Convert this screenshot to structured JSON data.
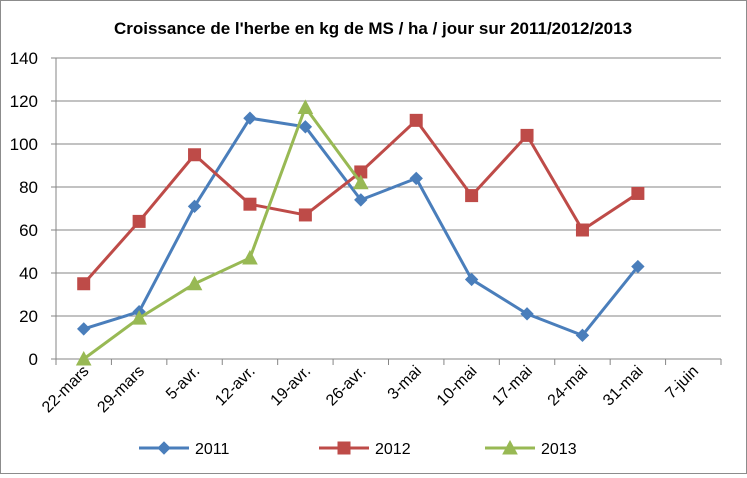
{
  "chart_data": {
    "type": "line",
    "title": "Croissance de l'herbe en kg de MS / ha / jour sur 2011/2012/2013",
    "xlabel": "",
    "ylabel": "",
    "categories": [
      "22-mars",
      "29-mars",
      "5-avr.",
      "12-avr.",
      "19-avr.",
      "26-avr.",
      "3-mai",
      "10-mai",
      "17-mai",
      "24-mai",
      "31-mai",
      "7-juin"
    ],
    "ylim": [
      0,
      140
    ],
    "yticks": [
      0,
      20,
      40,
      60,
      80,
      100,
      120,
      140
    ],
    "grid": true,
    "legend_position": "bottom",
    "series": [
      {
        "name": "2011",
        "color": "#4a7ebb",
        "marker": "diamond",
        "values": [
          14,
          22,
          71,
          112,
          108,
          74,
          84,
          37,
          21,
          11,
          43,
          null
        ]
      },
      {
        "name": "2012",
        "color": "#be4b48",
        "marker": "square",
        "values": [
          35,
          64,
          95,
          72,
          67,
          87,
          111,
          76,
          104,
          60,
          77,
          null
        ]
      },
      {
        "name": "2013",
        "color": "#98b954",
        "marker": "triangle",
        "values": [
          0,
          19,
          35,
          47,
          117,
          82,
          null,
          null,
          null,
          null,
          null,
          null
        ]
      }
    ]
  }
}
